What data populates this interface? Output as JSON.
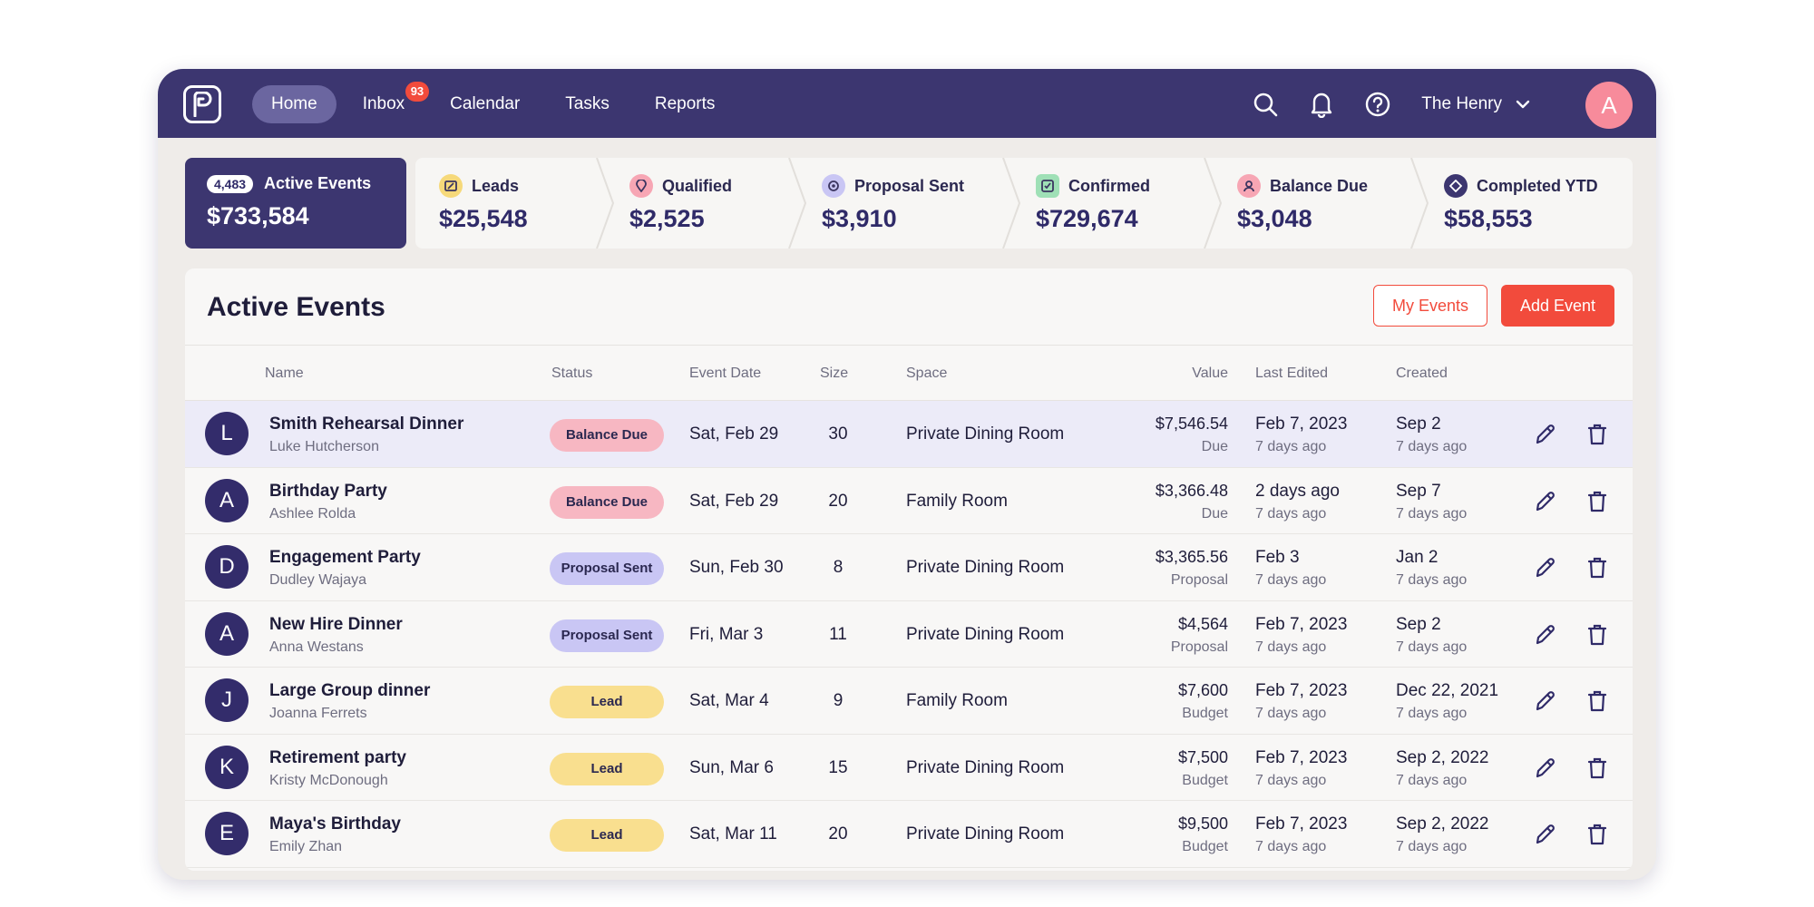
{
  "nav": {
    "items": [
      {
        "label": "Home",
        "active": true
      },
      {
        "label": "Inbox",
        "badge": "93"
      },
      {
        "label": "Calendar"
      },
      {
        "label": "Tasks"
      },
      {
        "label": "Reports"
      }
    ],
    "venue": "The Henry",
    "avatar_initial": "A",
    "icons": [
      "search-icon",
      "bell-icon",
      "help-icon",
      "chevron-down-icon"
    ]
  },
  "stages": {
    "active": {
      "count": "4,483",
      "label": "Active Events",
      "amount": "$733,584"
    },
    "items": [
      {
        "label": "Leads",
        "amount": "$25,548",
        "icon_bg": "#f6d97a",
        "icon_color": "#3b3560"
      },
      {
        "label": "Qualified",
        "amount": "$2,525",
        "icon_bg": "#f7a6b4",
        "icon_color": "#3b3560"
      },
      {
        "label": "Proposal Sent",
        "amount": "$3,910",
        "icon_bg": "#c9c6f4",
        "icon_color": "#3b3560"
      },
      {
        "label": "Confirmed",
        "amount": "$729,674",
        "icon_bg": "#9fe0b6",
        "icon_color": "#3b3560"
      },
      {
        "label": "Balance Due",
        "amount": "$3,048",
        "icon_bg": "#f7a6b4",
        "icon_color": "#3b3560"
      },
      {
        "label": "Completed YTD",
        "amount": "$58,553",
        "icon_bg": "#3c3670",
        "icon_color": "#ffffff"
      }
    ]
  },
  "panel": {
    "title": "Active Events",
    "my_events": "My Events",
    "add_event": "Add Event"
  },
  "table": {
    "headers": {
      "name": "Name",
      "status": "Status",
      "date": "Event Date",
      "size": "Size",
      "space": "Space",
      "value": "Value",
      "edited": "Last Edited",
      "created": "Created"
    },
    "rows": [
      {
        "initial": "L",
        "name": "Smith Rehearsal Dinner",
        "contact": "Luke Hutcherson",
        "status": "Balance Due",
        "status_kind": "balance",
        "date": "Sat, Feb 29",
        "size": "30",
        "space": "Private Dining Room",
        "value": "$7,546.54",
        "value_sub": "Due",
        "edited": "Feb 7, 2023",
        "edited_sub": "7 days ago",
        "created": "Sep 2",
        "created_sub": "7 days ago",
        "highlight": true
      },
      {
        "initial": "A",
        "name": "Birthday Party",
        "contact": "Ashlee Rolda",
        "status": "Balance Due",
        "status_kind": "balance",
        "date": "Sat, Feb 29",
        "size": "20",
        "space": "Family Room",
        "value": "$3,366.48",
        "value_sub": "Due",
        "edited": "2 days ago",
        "edited_sub": "7 days ago",
        "created": "Sep 7",
        "created_sub": "7 days ago"
      },
      {
        "initial": "D",
        "name": "Engagement Party",
        "contact": "Dudley Wajaya",
        "status": "Proposal Sent",
        "status_kind": "proposal",
        "date": "Sun, Feb 30",
        "size": "8",
        "space": "Private Dining Room",
        "value": "$3,365.56",
        "value_sub": "Proposal",
        "edited": "Feb 3",
        "edited_sub": "7 days ago",
        "created": "Jan 2",
        "created_sub": "7 days ago"
      },
      {
        "initial": "A",
        "name": "New Hire Dinner",
        "contact": "Anna Westans",
        "status": "Proposal Sent",
        "status_kind": "proposal",
        "date": "Fri, Mar 3",
        "size": "11",
        "space": "Private Dining Room",
        "value": "$4,564",
        "value_sub": "Proposal",
        "edited": "Feb 7, 2023",
        "edited_sub": "7 days ago",
        "created": "Sep 2",
        "created_sub": "7 days ago"
      },
      {
        "initial": "J",
        "name": "Large Group dinner",
        "contact": "Joanna Ferrets",
        "status": "Lead",
        "status_kind": "lead",
        "date": "Sat, Mar 4",
        "size": "9",
        "space": "Family Room",
        "value": "$7,600",
        "value_sub": "Budget",
        "edited": "Feb 7, 2023",
        "edited_sub": "7 days ago",
        "created": "Dec 22, 2021",
        "created_sub": "7 days ago"
      },
      {
        "initial": "K",
        "name": "Retirement party",
        "contact": "Kristy McDonough",
        "status": "Lead",
        "status_kind": "lead",
        "date": "Sun, Mar 6",
        "size": "15",
        "space": "Private Dining Room",
        "value": "$7,500",
        "value_sub": "Budget",
        "edited": "Feb 7, 2023",
        "edited_sub": "7 days ago",
        "created": "Sep 2, 2022",
        "created_sub": "7 days ago"
      },
      {
        "initial": "E",
        "name": "Maya's Birthday",
        "contact": "Emily Zhan",
        "status": "Lead",
        "status_kind": "lead",
        "date": "Sat, Mar 11",
        "size": "20",
        "space": "Private Dining Room",
        "value": "$9,500",
        "value_sub": "Budget",
        "edited": "Feb 7, 2023",
        "edited_sub": "7 days ago",
        "created": "Sep 2, 2022",
        "created_sub": "7 days ago"
      }
    ]
  }
}
